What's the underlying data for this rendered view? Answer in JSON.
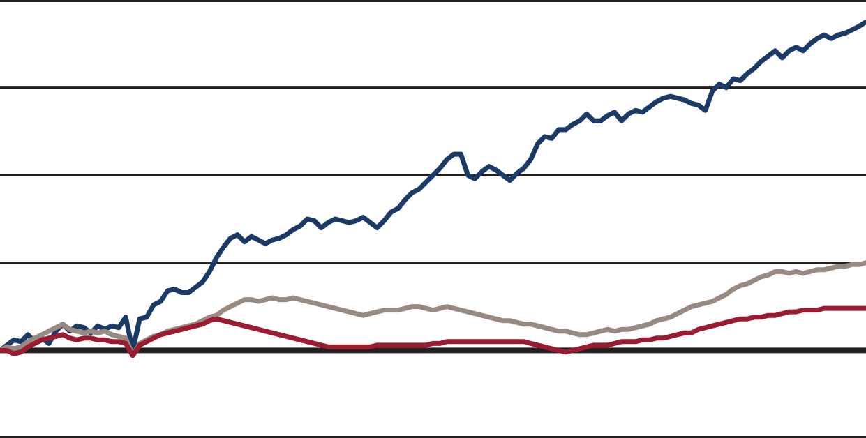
{
  "chart_data": {
    "type": "line",
    "title": "",
    "xlabel": "",
    "ylabel": "",
    "x": [
      0,
      1,
      2,
      3,
      4,
      5,
      6,
      7,
      8,
      9,
      10,
      11,
      12,
      13,
      14,
      15,
      16,
      17,
      18,
      19,
      20,
      21,
      22,
      23,
      24,
      25,
      26,
      27,
      28,
      29,
      30,
      31,
      32,
      33,
      34,
      35,
      36,
      37,
      38,
      39,
      40,
      41,
      42,
      43,
      44,
      45,
      46,
      47,
      48,
      49,
      50,
      51,
      52,
      53,
      54,
      55,
      56,
      57,
      58,
      59,
      60,
      61,
      62,
      63,
      64,
      65,
      66,
      67,
      68,
      69,
      70,
      71,
      72,
      73,
      74,
      75,
      76,
      77,
      78,
      79,
      80,
      81,
      82,
      83,
      84,
      85,
      86,
      87,
      88,
      89,
      90,
      91,
      92,
      93,
      94,
      95,
      96,
      97,
      98,
      99,
      100,
      101,
      102,
      103,
      104,
      105,
      106,
      107,
      108,
      109,
      110,
      111,
      112,
      113,
      114,
      115,
      116,
      117,
      118,
      119,
      120,
      121,
      122,
      123,
      124
    ],
    "ylim": [
      -1,
      4
    ],
    "gridlines": [
      -1,
      0,
      1,
      2,
      3,
      4
    ],
    "baseline": 0,
    "grid": true,
    "legend": "none",
    "series": [
      {
        "color": "#1b3a66",
        "values": [
          0.0,
          0.06,
          0.12,
          0.1,
          0.18,
          0.1,
          0.14,
          0.08,
          0.22,
          0.3,
          0.22,
          0.28,
          0.26,
          0.2,
          0.28,
          0.24,
          0.28,
          0.26,
          0.38,
          0.0,
          0.36,
          0.38,
          0.52,
          0.56,
          0.68,
          0.7,
          0.66,
          0.66,
          0.72,
          0.78,
          0.9,
          1.06,
          1.18,
          1.28,
          1.32,
          1.24,
          1.3,
          1.26,
          1.22,
          1.26,
          1.28,
          1.32,
          1.38,
          1.42,
          1.5,
          1.48,
          1.4,
          1.46,
          1.5,
          1.48,
          1.46,
          1.48,
          1.52,
          1.46,
          1.4,
          1.48,
          1.58,
          1.62,
          1.72,
          1.8,
          1.84,
          1.92,
          2.0,
          2.08,
          2.18,
          2.24,
          2.24,
          2.0,
          1.96,
          2.04,
          2.1,
          2.06,
          2.0,
          1.94,
          2.02,
          2.08,
          2.18,
          2.36,
          2.44,
          2.42,
          2.52,
          2.52,
          2.58,
          2.62,
          2.7,
          2.62,
          2.62,
          2.68,
          2.72,
          2.62,
          2.7,
          2.74,
          2.72,
          2.78,
          2.84,
          2.88,
          2.9,
          2.88,
          2.86,
          2.82,
          2.8,
          2.74,
          2.96,
          3.04,
          3.0,
          3.1,
          3.08,
          3.16,
          3.22,
          3.3,
          3.36,
          3.42,
          3.34,
          3.42,
          3.46,
          3.42,
          3.5,
          3.56,
          3.6,
          3.56,
          3.6,
          3.62,
          3.66,
          3.7,
          3.75
        ]
      },
      {
        "color": "#988a80",
        "values": [
          0.0,
          0.04,
          0.02,
          0.04,
          0.1,
          0.14,
          0.18,
          0.22,
          0.26,
          0.3,
          0.24,
          0.22,
          0.2,
          0.22,
          0.2,
          0.22,
          0.18,
          0.16,
          0.14,
          -0.06,
          0.08,
          0.12,
          0.16,
          0.18,
          0.22,
          0.24,
          0.26,
          0.28,
          0.3,
          0.34,
          0.38,
          0.4,
          0.46,
          0.5,
          0.54,
          0.58,
          0.58,
          0.56,
          0.58,
          0.6,
          0.58,
          0.58,
          0.6,
          0.58,
          0.56,
          0.54,
          0.52,
          0.5,
          0.48,
          0.46,
          0.44,
          0.42,
          0.4,
          0.42,
          0.44,
          0.46,
          0.46,
          0.46,
          0.48,
          0.5,
          0.5,
          0.48,
          0.46,
          0.48,
          0.5,
          0.48,
          0.46,
          0.44,
          0.42,
          0.4,
          0.38,
          0.36,
          0.34,
          0.34,
          0.32,
          0.3,
          0.3,
          0.28,
          0.26,
          0.24,
          0.22,
          0.22,
          0.2,
          0.18,
          0.18,
          0.2,
          0.22,
          0.24,
          0.22,
          0.24,
          0.24,
          0.26,
          0.28,
          0.3,
          0.34,
          0.36,
          0.38,
          0.42,
          0.46,
          0.5,
          0.52,
          0.54,
          0.56,
          0.6,
          0.64,
          0.7,
          0.74,
          0.76,
          0.8,
          0.84,
          0.86,
          0.9,
          0.9,
          0.88,
          0.9,
          0.88,
          0.9,
          0.92,
          0.92,
          0.94,
          0.96,
          0.96,
          0.98,
          0.98,
          1.0
        ]
      },
      {
        "color": "#9b1c31",
        "values": [
          0.0,
          0.0,
          -0.04,
          -0.02,
          0.04,
          0.08,
          0.12,
          0.14,
          0.16,
          0.18,
          0.14,
          0.12,
          0.14,
          0.14,
          0.12,
          0.12,
          0.1,
          0.1,
          0.08,
          -0.06,
          0.06,
          0.1,
          0.14,
          0.18,
          0.2,
          0.22,
          0.24,
          0.26,
          0.28,
          0.3,
          0.34,
          0.36,
          0.34,
          0.32,
          0.3,
          0.28,
          0.26,
          0.24,
          0.22,
          0.2,
          0.18,
          0.16,
          0.14,
          0.12,
          0.1,
          0.08,
          0.06,
          0.04,
          0.04,
          0.04,
          0.04,
          0.04,
          0.04,
          0.04,
          0.06,
          0.06,
          0.06,
          0.06,
          0.06,
          0.06,
          0.06,
          0.06,
          0.08,
          0.08,
          0.1,
          0.1,
          0.1,
          0.1,
          0.1,
          0.1,
          0.1,
          0.1,
          0.1,
          0.1,
          0.1,
          0.1,
          0.08,
          0.06,
          0.04,
          0.02,
          0.0,
          -0.02,
          0.0,
          0.02,
          0.04,
          0.06,
          0.06,
          0.06,
          0.08,
          0.1,
          0.1,
          0.1,
          0.12,
          0.12,
          0.14,
          0.14,
          0.16,
          0.18,
          0.2,
          0.2,
          0.24,
          0.26,
          0.28,
          0.3,
          0.32,
          0.34,
          0.36,
          0.36,
          0.38,
          0.38,
          0.4,
          0.4,
          0.42,
          0.44,
          0.44,
          0.46,
          0.46,
          0.46,
          0.48,
          0.48,
          0.48,
          0.48,
          0.48,
          0.48,
          0.48
        ]
      }
    ]
  }
}
